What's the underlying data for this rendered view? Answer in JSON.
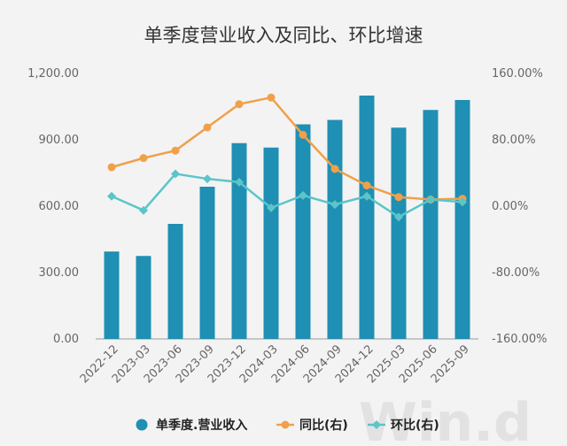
{
  "chart_data": {
    "type": "bar",
    "title": "单季度营业收入及同比、环比增速",
    "categories": [
      "2022-12",
      "2023-03",
      "2023-06",
      "2023-09",
      "2023-12",
      "2024-03",
      "2024-06",
      "2024-09",
      "2024-12",
      "2025-03",
      "2025-06",
      "2025-09"
    ],
    "y_left": {
      "range": [
        0,
        1200
      ],
      "ticks": [
        "0.00",
        "300.00",
        "600.00",
        "900.00",
        "1,200.00"
      ]
    },
    "y_right": {
      "range": [
        -160,
        160
      ],
      "ticks": [
        "-160.00%",
        "-80.00%",
        "0.00%",
        "80.00%",
        "160.00%"
      ]
    },
    "series": [
      {
        "name": "单季度.营业收入",
        "type": "bar",
        "axis": "left",
        "color": "#1f8fb3",
        "values": [
          395,
          375,
          520,
          688,
          885,
          865,
          970,
          990,
          1100,
          955,
          1035,
          1080
        ]
      },
      {
        "name": "同比(右)",
        "type": "line",
        "axis": "right",
        "color": "#f0a04b",
        "values": [
          47,
          58,
          67,
          95,
          123,
          131,
          86,
          45,
          25,
          11,
          8,
          9
        ]
      },
      {
        "name": "环比(右)",
        "type": "line",
        "axis": "right",
        "color": "#5bc5c9",
        "values": [
          12,
          -5,
          39,
          33,
          29,
          -2,
          13,
          2,
          12,
          -13,
          8,
          5
        ]
      }
    ],
    "grid": false,
    "legend_position": "bottom"
  },
  "watermark": "Win.d"
}
